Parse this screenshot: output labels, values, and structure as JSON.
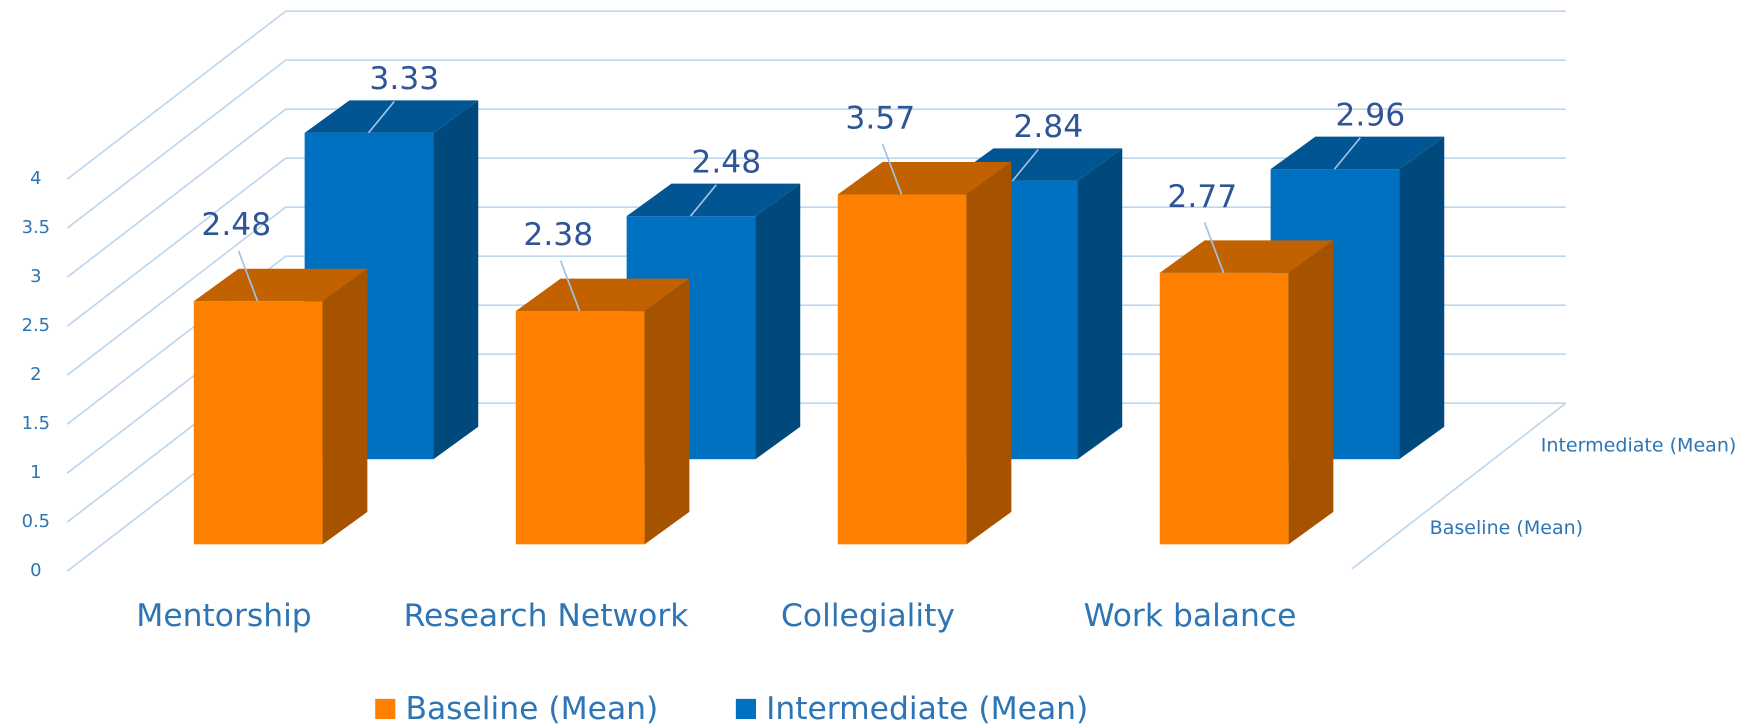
{
  "chart_data": {
    "type": "bar3d",
    "categories": [
      "Mentorship",
      "Research Network",
      "Collegiality",
      "Work balance"
    ],
    "series": [
      {
        "name": "Baseline (Mean)",
        "color": "#ff8000",
        "values": [
          2.48,
          2.38,
          3.57,
          2.77
        ]
      },
      {
        "name": "Intermediate (Mean)",
        "color": "#0070c0",
        "values": [
          3.33,
          2.48,
          2.84,
          2.96
        ]
      }
    ],
    "ylim": [
      0,
      4
    ],
    "yticks": [
      0,
      0.5,
      1,
      1.5,
      2,
      2.5,
      3,
      3.5,
      4
    ],
    "grid": true,
    "legend": "bottom"
  }
}
